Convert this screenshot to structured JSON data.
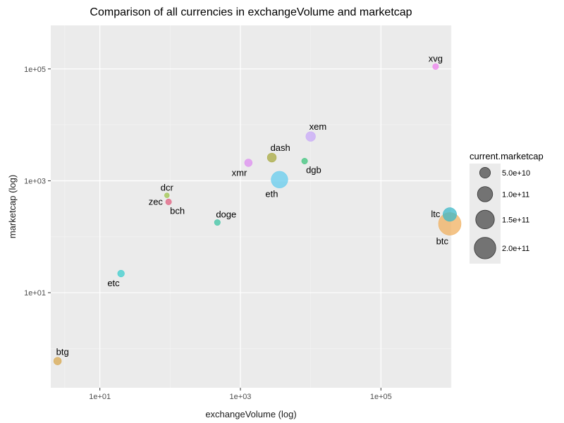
{
  "chart_data": {
    "type": "scatter",
    "title": "Comparison of all currencies in exchangeVolume  and  marketcap",
    "xlabel": "exchangeVolume (log)",
    "ylabel": "marketcap (log)",
    "x_scale": "log10",
    "y_scale": "log10",
    "xlim": [
      2.0,
      1000000
    ],
    "ylim": [
      0.2,
      600000
    ],
    "x_ticks": [
      {
        "value": 10,
        "label": "1e+01"
      },
      {
        "value": 1000,
        "label": "1e+03"
      },
      {
        "value": 100000,
        "label": "1e+05"
      }
    ],
    "y_ticks": [
      {
        "value": 10,
        "label": "1e+01"
      },
      {
        "value": 1000,
        "label": "1e+03"
      },
      {
        "value": 100000,
        "label": "1e+05"
      }
    ],
    "grid": true,
    "legend": {
      "title": "current.marketcap",
      "placement": "right",
      "entries": [
        {
          "label": "5.0e+10",
          "value": 50000000000
        },
        {
          "label": "1.0e+11",
          "value": 100000000000
        },
        {
          "label": "1.5e+11",
          "value": 150000000000
        },
        {
          "label": "2.0e+11",
          "value": 200000000000
        }
      ]
    },
    "points": [
      {
        "label": "xvg",
        "x": 600000,
        "y": 110000,
        "size": 15000000000,
        "color": "#ee82ee",
        "label_pos": "above"
      },
      {
        "label": "xem",
        "x": 10000,
        "y": 6200,
        "size": 40000000000,
        "color": "#c8a8f8",
        "label_pos": "above-right"
      },
      {
        "label": "dash",
        "x": 2800,
        "y": 2600,
        "size": 35000000000,
        "color": "#a8aa40",
        "label_pos": "above-right"
      },
      {
        "label": "dgb",
        "x": 8200,
        "y": 2250,
        "size": 15000000000,
        "color": "#3ec47c",
        "label_pos": "below-right"
      },
      {
        "label": "xmr",
        "x": 1300,
        "y": 2100,
        "size": 25000000000,
        "color": "#de8ef0",
        "label_pos": "below-left"
      },
      {
        "label": "eth",
        "x": 3600,
        "y": 1050,
        "size": 120000000000,
        "color": "#66ccee",
        "label_pos": "below-left"
      },
      {
        "label": "dcr",
        "x": 90,
        "y": 550,
        "size": 10000000000,
        "color": "#9fc44c",
        "label_pos": "above"
      },
      {
        "label": "zec",
        "x": 95,
        "y": 420,
        "size": 15000000000,
        "color": "#e06080",
        "label_pos": "left"
      },
      {
        "label": "bch",
        "x": 95,
        "y": 420,
        "size": 15000000000,
        "color": "#e06080",
        "label_pos": "below-right"
      },
      {
        "label": "doge",
        "x": 470,
        "y": 180,
        "size": 15000000000,
        "color": "#3ec4a4",
        "label_pos": "above-right"
      },
      {
        "label": "etc",
        "x": 20,
        "y": 22,
        "size": 20000000000,
        "color": "#3ecdcd",
        "label_pos": "below-left"
      },
      {
        "label": "btg",
        "x": 2.5,
        "y": 0.6,
        "size": 25000000000,
        "color": "#d8a850",
        "label_pos": "above-right"
      },
      {
        "label": "ltc",
        "x": 1000000,
        "y": 250,
        "size": 80000000000,
        "color": "#3eb8c8",
        "label_pos": "left"
      },
      {
        "label": "btc",
        "x": 1000000,
        "y": 170,
        "size": 220000000000,
        "color": "#f0b060",
        "label_pos": "below-left"
      }
    ]
  }
}
